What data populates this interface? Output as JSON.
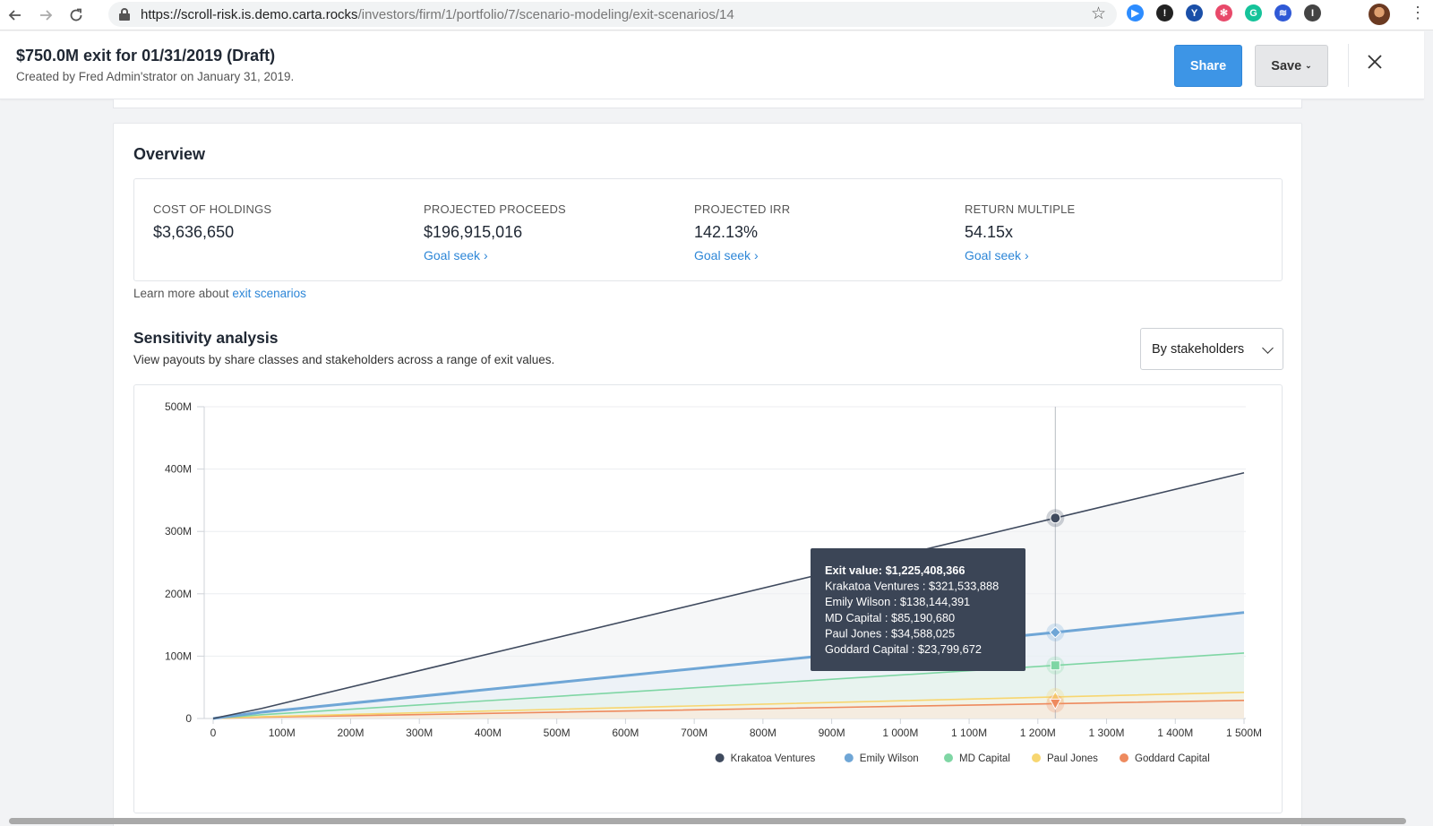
{
  "browser": {
    "url_host": "https://scroll-risk.is.demo.carta.rocks",
    "url_path": "/investors/firm/1/portfolio/7/scenario-modeling/exit-scenarios/14",
    "extensions": [
      {
        "icon": "zoom-video-icon",
        "color": "#2d8cff",
        "glyph": "▶"
      },
      {
        "icon": "password-manager-icon",
        "color": "#222222",
        "glyph": "!"
      },
      {
        "icon": "vimcal-y-icon",
        "color": "#1a4fa8",
        "glyph": "Y"
      },
      {
        "icon": "pinwheel-icon",
        "color": "#e8496a",
        "glyph": "✻"
      },
      {
        "icon": "grammarly-icon",
        "color": "#15c39a",
        "glyph": "G"
      },
      {
        "icon": "stripes-icon",
        "color": "#2f59d6",
        "glyph": "≋"
      },
      {
        "icon": "notion-icon",
        "color": "#444444",
        "glyph": "I"
      }
    ]
  },
  "header": {
    "title": "$750.0M exit for 01/31/2019 (Draft)",
    "subtitle": "Created by Fred Admin'strator on January 31, 2019.",
    "share_label": "Share",
    "save_label": "Save"
  },
  "overview": {
    "title": "Overview",
    "metrics": [
      {
        "label": "COST OF HOLDINGS",
        "value": "$3,636,650",
        "link": ""
      },
      {
        "label": "PROJECTED PROCEEDS",
        "value": "$196,915,016",
        "link": "Goal seek"
      },
      {
        "label": "PROJECTED IRR",
        "value": "142.13%",
        "link": "Goal seek"
      },
      {
        "label": "RETURN MULTIPLE",
        "value": "54.15x",
        "link": "Goal seek"
      }
    ],
    "learn_prefix": "Learn more about ",
    "learn_link": "exit scenarios"
  },
  "sensitivity": {
    "title": "Sensitivity analysis",
    "subtitle": "View payouts by share classes and stakeholders across a range of exit values.",
    "dropdown_value": "By stakeholders"
  },
  "chart_data": {
    "type": "line",
    "xlim": [
      0,
      1500000000
    ],
    "ylim": [
      0,
      500000000
    ],
    "x_ticks": [
      {
        "v": 0,
        "label": "0"
      },
      {
        "v": 100000000,
        "label": "100M"
      },
      {
        "v": 200000000,
        "label": "200M"
      },
      {
        "v": 300000000,
        "label": "300M"
      },
      {
        "v": 400000000,
        "label": "400M"
      },
      {
        "v": 500000000,
        "label": "500M"
      },
      {
        "v": 600000000,
        "label": "600M"
      },
      {
        "v": 700000000,
        "label": "700M"
      },
      {
        "v": 800000000,
        "label": "800M"
      },
      {
        "v": 900000000,
        "label": "900M"
      },
      {
        "v": 1000000000,
        "label": "1 000M"
      },
      {
        "v": 1100000000,
        "label": "1 100M"
      },
      {
        "v": 1200000000,
        "label": "1 200M"
      },
      {
        "v": 1300000000,
        "label": "1 300M"
      },
      {
        "v": 1400000000,
        "label": "1 400M"
      },
      {
        "v": 1500000000,
        "label": "1 500M"
      }
    ],
    "y_ticks": [
      {
        "v": 0,
        "label": "0"
      },
      {
        "v": 100000000,
        "label": "100M"
      },
      {
        "v": 200000000,
        "label": "200M"
      },
      {
        "v": 300000000,
        "label": "300M"
      },
      {
        "v": 400000000,
        "label": "400M"
      },
      {
        "v": 500000000,
        "label": "500M"
      }
    ],
    "series": [
      {
        "name": "Krakatoa Ventures",
        "color": "#3f4a5e",
        "width": 1.6,
        "marker": "circle",
        "fill": "#eef0f3",
        "points": [
          [
            0,
            0
          ],
          [
            70000000,
            16000000
          ],
          [
            1225408366,
            321533888
          ],
          [
            1500000000,
            394000000
          ]
        ]
      },
      {
        "name": "Emily Wilson",
        "color": "#6fa6d6",
        "width": 3,
        "marker": "diamond",
        "fill": "#e6eef6",
        "points": [
          [
            0,
            0
          ],
          [
            70000000,
            10000000
          ],
          [
            1225408366,
            138144391
          ],
          [
            1500000000,
            170000000
          ]
        ]
      },
      {
        "name": "MD Capital",
        "color": "#7fd6a4",
        "width": 1.6,
        "marker": "square",
        "fill": "#e4f4ea",
        "points": [
          [
            0,
            0
          ],
          [
            70000000,
            6000000
          ],
          [
            1225408366,
            85190680
          ],
          [
            1500000000,
            105000000
          ]
        ]
      },
      {
        "name": "Paul Jones",
        "color": "#f7d670",
        "width": 1.6,
        "marker": "triangle",
        "fill": "#faf3dc",
        "points": [
          [
            0,
            0
          ],
          [
            70000000,
            3000000
          ],
          [
            1225408366,
            34588025
          ],
          [
            1500000000,
            42000000
          ]
        ]
      },
      {
        "name": "Goddard Capital",
        "color": "#ee8a5e",
        "width": 1.6,
        "marker": "triangle-down",
        "fill": "#f8e6dc",
        "points": [
          [
            0,
            0
          ],
          [
            70000000,
            2000000
          ],
          [
            1225408366,
            23799672
          ],
          [
            1500000000,
            29000000
          ]
        ]
      }
    ],
    "hover_x": 1225408366,
    "tooltip": {
      "lines": [
        "Exit value: $1,225,408,366",
        "Krakatoa Ventures : $321,533,888",
        "Emily Wilson : $138,144,391",
        "MD Capital : $85,190,680",
        "Paul Jones : $34,588,025",
        "Goddard Capital : $23,799,672"
      ]
    },
    "legend_position": "bottom-right"
  }
}
